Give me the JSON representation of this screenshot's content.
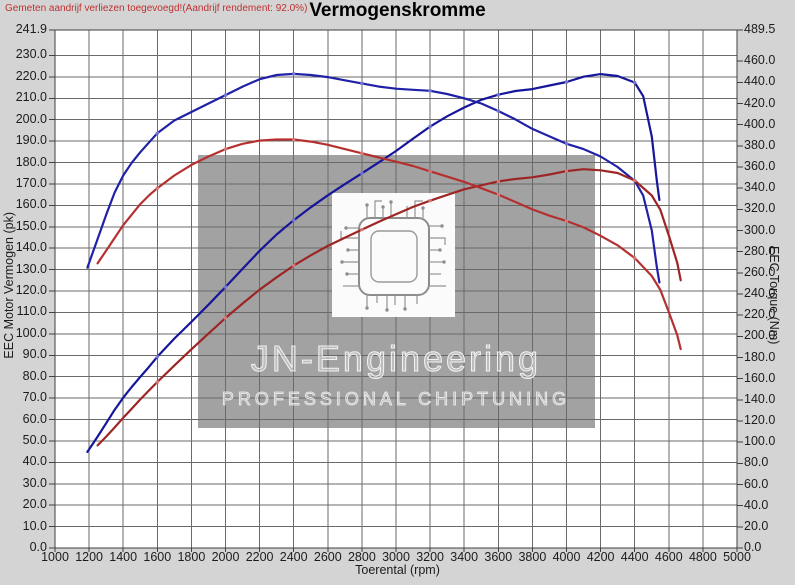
{
  "header": {
    "note": "Gemeten aandrijf verliezen toegevoegd!(Aandrijf rendement: 92.0%)",
    "note_color": "#c03030"
  },
  "title": "Vermogenskromme",
  "watermark": {
    "brand": "JN-Engineering",
    "tagline": "PROFESSIONAL CHIPTUNING",
    "icon": "chip-circuit-icon",
    "box_color": "#a2a2a2"
  },
  "colors": {
    "background": "#d4d4d4",
    "plot_background": "#ffffff",
    "grid": "#6a6a6a",
    "tuned_curves": "#1a1a9e",
    "original_curves": "#a82a2a"
  },
  "chart_data": {
    "type": "line",
    "title": "Vermogenskromme",
    "xlabel": "Toerental (rpm)",
    "ylabel_left": "EEC Motor Vermogen (pk)",
    "ylabel_right": "EEC Torque (Nm)",
    "x_range": [
      1000,
      5000
    ],
    "x_ticks": [
      1000,
      1200,
      1400,
      1600,
      1800,
      2000,
      2200,
      2400,
      2600,
      2800,
      3000,
      3200,
      3400,
      3600,
      3800,
      4000,
      4200,
      4400,
      4600,
      4800,
      5000
    ],
    "y_left_range": [
      0,
      241.9
    ],
    "y_left_ticks": [
      241.9,
      230,
      220,
      210,
      200,
      190,
      180,
      170,
      160,
      150,
      140,
      130,
      120,
      110,
      100,
      90,
      80,
      70,
      60,
      50,
      40,
      30,
      20,
      10,
      0
    ],
    "y_right_range": [
      0,
      489.5
    ],
    "y_right_ticks": [
      489.5,
      460,
      440,
      420,
      400,
      380,
      360,
      340,
      320,
      300,
      280,
      260,
      240,
      220,
      200,
      180,
      160,
      140,
      120,
      100,
      80,
      60,
      40,
      20,
      0
    ],
    "grid": true,
    "legend": "none",
    "series": [
      {
        "name": "tuned-power",
        "unit": "pk",
        "axis": "left",
        "color": "#16169a",
        "marker_color": "#7d7dd6",
        "points": [
          [
            1190,
            44.9
          ],
          [
            1250,
            52.0
          ],
          [
            1300,
            58.3
          ],
          [
            1350,
            64.6
          ],
          [
            1400,
            70.2
          ],
          [
            1450,
            75.2
          ],
          [
            1500,
            79.9
          ],
          [
            1550,
            84.5
          ],
          [
            1600,
            89.3
          ],
          [
            1700,
            97.8
          ],
          [
            1800,
            105.6
          ],
          [
            1900,
            113.6
          ],
          [
            2000,
            121.9
          ],
          [
            2100,
            130.4
          ],
          [
            2200,
            138.8
          ],
          [
            2300,
            146.4
          ],
          [
            2400,
            153.1
          ],
          [
            2500,
            159.1
          ],
          [
            2600,
            164.7
          ],
          [
            2700,
            169.9
          ],
          [
            2800,
            175.0
          ],
          [
            2900,
            180.1
          ],
          [
            3000,
            185.4
          ],
          [
            3100,
            191.2
          ],
          [
            3200,
            196.8
          ],
          [
            3300,
            201.6
          ],
          [
            3400,
            205.7
          ],
          [
            3500,
            209.3
          ],
          [
            3600,
            211.7
          ],
          [
            3700,
            213.4
          ],
          [
            3800,
            214.3
          ],
          [
            3900,
            216.0
          ],
          [
            4000,
            217.6
          ],
          [
            4100,
            220.1
          ],
          [
            4200,
            221.3
          ],
          [
            4300,
            220.4
          ],
          [
            4400,
            217.4
          ],
          [
            4450,
            211.0
          ],
          [
            4500,
            192.1
          ],
          [
            4530,
            171.2
          ],
          [
            4545,
            162.5
          ]
        ]
      },
      {
        "name": "tuned-torque",
        "unit": "Nm",
        "axis": "right",
        "color": "#2121a8",
        "marker_color": "#7d7dd6",
        "points": [
          [
            1190,
            265
          ],
          [
            1250,
            292
          ],
          [
            1300,
            315
          ],
          [
            1350,
            336
          ],
          [
            1400,
            352
          ],
          [
            1450,
            364
          ],
          [
            1500,
            374
          ],
          [
            1550,
            383
          ],
          [
            1600,
            392
          ],
          [
            1700,
            404
          ],
          [
            1800,
            412
          ],
          [
            1900,
            420
          ],
          [
            2000,
            428
          ],
          [
            2100,
            436
          ],
          [
            2200,
            443
          ],
          [
            2300,
            447
          ],
          [
            2400,
            448
          ],
          [
            2500,
            447
          ],
          [
            2600,
            445
          ],
          [
            2700,
            442
          ],
          [
            2800,
            439
          ],
          [
            2900,
            436
          ],
          [
            3000,
            434
          ],
          [
            3100,
            433
          ],
          [
            3200,
            432
          ],
          [
            3300,
            429
          ],
          [
            3400,
            425
          ],
          [
            3500,
            420
          ],
          [
            3600,
            413
          ],
          [
            3700,
            405
          ],
          [
            3800,
            396
          ],
          [
            3900,
            389
          ],
          [
            4000,
            382
          ],
          [
            4100,
            377
          ],
          [
            4200,
            370
          ],
          [
            4300,
            360
          ],
          [
            4400,
            347
          ],
          [
            4450,
            333
          ],
          [
            4500,
            300
          ],
          [
            4530,
            265
          ],
          [
            4545,
            251
          ]
        ]
      },
      {
        "name": "original-power",
        "unit": "pk",
        "axis": "left",
        "color": "#9e2525",
        "marker_color": "#d98080",
        "points": [
          [
            1250,
            47.9
          ],
          [
            1300,
            52.0
          ],
          [
            1350,
            56.3
          ],
          [
            1400,
            60.8
          ],
          [
            1450,
            65.0
          ],
          [
            1500,
            69.4
          ],
          [
            1550,
            73.5
          ],
          [
            1600,
            77.5
          ],
          [
            1700,
            85.2
          ],
          [
            1800,
            92.8
          ],
          [
            1900,
            100.1
          ],
          [
            2000,
            107.4
          ],
          [
            2100,
            114.2
          ],
          [
            2200,
            120.6
          ],
          [
            2300,
            126.4
          ],
          [
            2400,
            131.9
          ],
          [
            2500,
            136.7
          ],
          [
            2600,
            141.1
          ],
          [
            2700,
            144.9
          ],
          [
            2800,
            148.7
          ],
          [
            2900,
            152.4
          ],
          [
            3000,
            155.9
          ],
          [
            3100,
            159.3
          ],
          [
            3200,
            162.2
          ],
          [
            3300,
            164.9
          ],
          [
            3400,
            167.5
          ],
          [
            3500,
            169.4
          ],
          [
            3600,
            171.2
          ],
          [
            3700,
            172.3
          ],
          [
            3800,
            173.1
          ],
          [
            3900,
            174.4
          ],
          [
            4000,
            176.0
          ],
          [
            4100,
            176.9
          ],
          [
            4200,
            176.4
          ],
          [
            4300,
            175.1
          ],
          [
            4400,
            171.6
          ],
          [
            4500,
            164.6
          ],
          [
            4550,
            158.0
          ],
          [
            4600,
            146.0
          ],
          [
            4650,
            133.1
          ],
          [
            4670,
            125.0
          ]
        ]
      },
      {
        "name": "original-torque",
        "unit": "Nm",
        "axis": "right",
        "color": "#b53030",
        "marker_color": "#d98080",
        "points": [
          [
            1250,
            269
          ],
          [
            1300,
            281
          ],
          [
            1350,
            293
          ],
          [
            1400,
            305
          ],
          [
            1450,
            315
          ],
          [
            1500,
            325
          ],
          [
            1550,
            333
          ],
          [
            1600,
            340
          ],
          [
            1700,
            352
          ],
          [
            1800,
            362
          ],
          [
            1900,
            370
          ],
          [
            2000,
            377
          ],
          [
            2100,
            382
          ],
          [
            2200,
            385
          ],
          [
            2300,
            386
          ],
          [
            2400,
            386
          ],
          [
            2500,
            384
          ],
          [
            2600,
            381
          ],
          [
            2700,
            377
          ],
          [
            2800,
            373
          ],
          [
            2900,
            369
          ],
          [
            3000,
            365
          ],
          [
            3100,
            361
          ],
          [
            3200,
            356
          ],
          [
            3300,
            351
          ],
          [
            3400,
            346
          ],
          [
            3500,
            340
          ],
          [
            3600,
            334
          ],
          [
            3700,
            327
          ],
          [
            3800,
            320
          ],
          [
            3900,
            314
          ],
          [
            4000,
            309
          ],
          [
            4100,
            303
          ],
          [
            4200,
            295
          ],
          [
            4300,
            286
          ],
          [
            4400,
            274
          ],
          [
            4500,
            257
          ],
          [
            4550,
            244
          ],
          [
            4600,
            223
          ],
          [
            4650,
            201
          ],
          [
            4670,
            188
          ]
        ]
      }
    ]
  }
}
